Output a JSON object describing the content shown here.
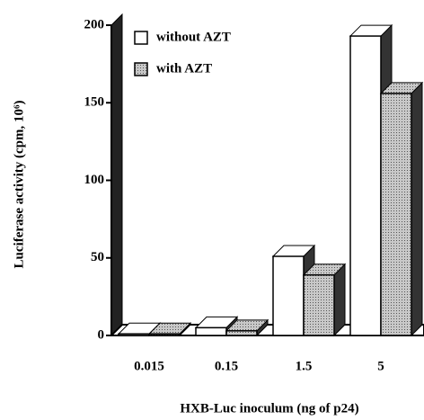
{
  "chart_data": {
    "type": "bar3d",
    "ylabel": "Luciferase activity (cpm, 10⁶)",
    "xlabel": "HXB-Luc inoculum (ng of p24)",
    "categories": [
      "0.015",
      "0.15",
      "1.5",
      "5"
    ],
    "series": [
      {
        "name": "without AZT",
        "color": "#ffffff",
        "values": [
          1,
          5,
          51,
          193
        ]
      },
      {
        "name": "with AZT",
        "color": "#aaaaaa",
        "values": [
          1,
          3,
          39,
          156
        ]
      }
    ],
    "ylim": [
      0,
      200
    ],
    "yticks": [
      0,
      50,
      100,
      150,
      200
    ],
    "legend": "upper left"
  }
}
